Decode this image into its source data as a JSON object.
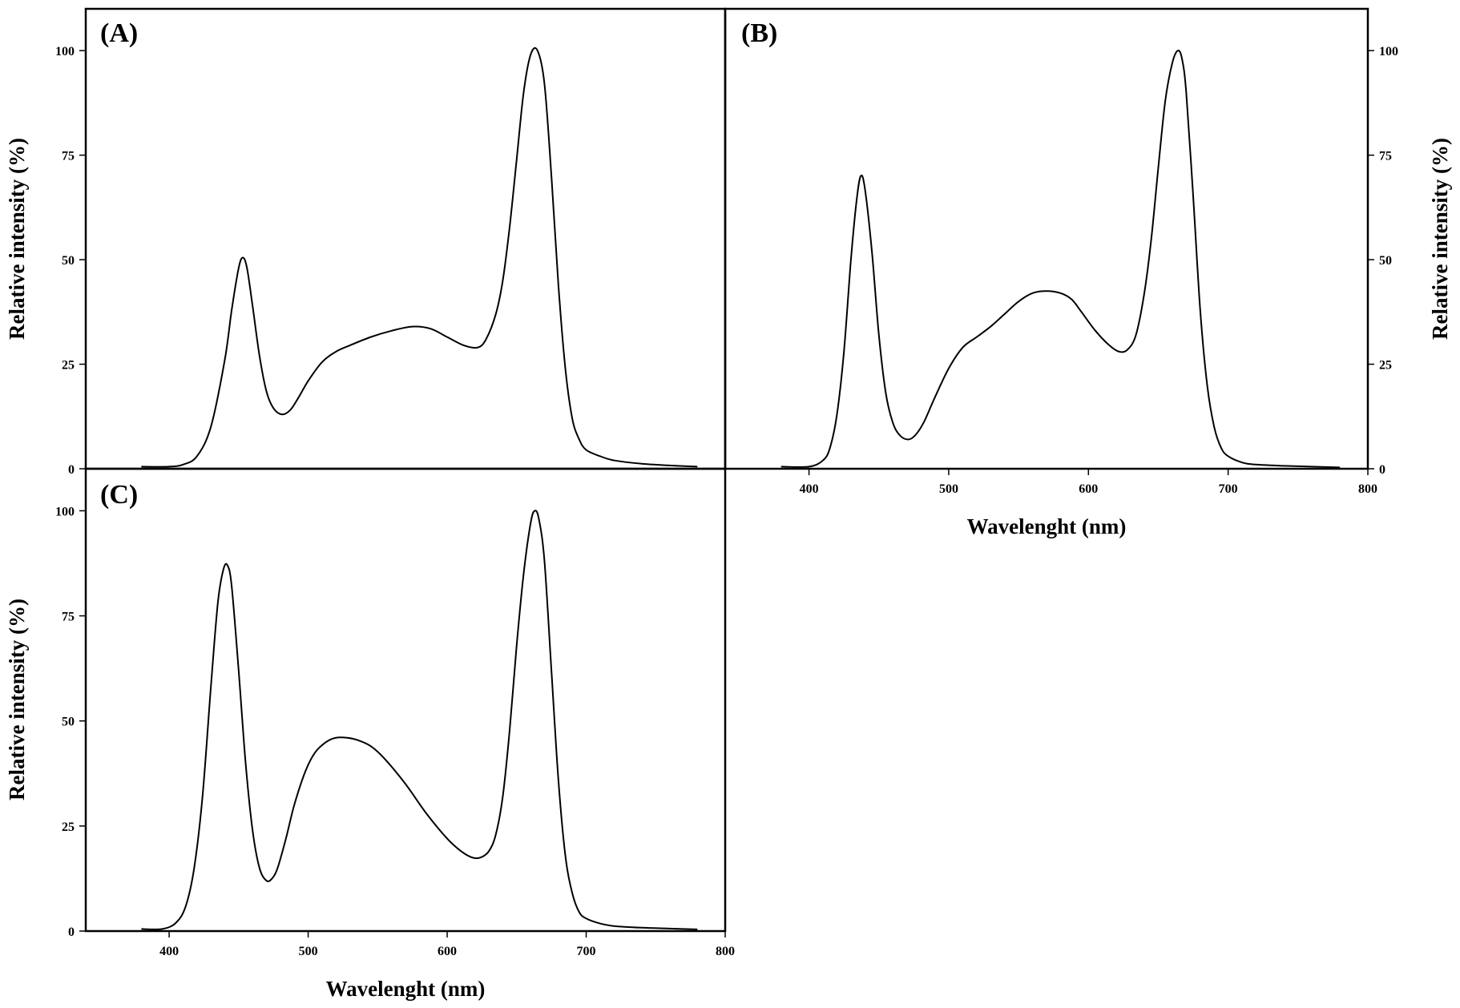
{
  "chart_data": [
    {
      "type": "line",
      "panel_label": "(A)",
      "xlabel": "",
      "ylabel": "Relative intensity (%)",
      "xlim": [
        340,
        800
      ],
      "ylim": [
        0,
        110
      ],
      "xticks": [],
      "yticks": [
        0,
        25,
        50,
        75,
        100
      ],
      "y_axis_side": "left",
      "grid": false,
      "series": [
        {
          "x": [
            380,
            400,
            410,
            420,
            430,
            440,
            445,
            450,
            453,
            456,
            460,
            465,
            470,
            475,
            481,
            487,
            493,
            500,
            510,
            520,
            530,
            545,
            560,
            575,
            588,
            600,
            612,
            622,
            628,
            635,
            640,
            645,
            650,
            655,
            660,
            665,
            670,
            675,
            680,
            685,
            690,
            695,
            700,
            710,
            720,
            740,
            760,
            780
          ],
          "y": [
            0.5,
            0.5,
            1,
            3,
            10,
            26,
            38,
            48,
            50.5,
            48,
            39,
            27,
            18.5,
            14.5,
            13,
            14,
            17,
            21,
            25.5,
            28,
            29.5,
            31.5,
            33,
            34,
            33.5,
            31.5,
            29.5,
            29,
            31,
            37,
            45,
            58,
            74,
            90,
            99,
            100,
            92,
            70,
            44,
            24,
            12,
            7,
            4.5,
            3,
            2,
            1.2,
            0.8,
            0.5
          ]
        }
      ]
    },
    {
      "type": "line",
      "panel_label": "(B)",
      "xlabel": "Wavelenght (nm)",
      "ylabel": "Relative intensity (%)",
      "xlim": [
        340,
        800
      ],
      "ylim": [
        0,
        110
      ],
      "xticks": [
        400,
        500,
        600,
        700,
        800
      ],
      "yticks": [
        0,
        25,
        50,
        75,
        100
      ],
      "y_axis_side": "right",
      "grid": false,
      "series": [
        {
          "x": [
            380,
            400,
            410,
            415,
            420,
            425,
            430,
            434,
            437,
            440,
            445,
            450,
            455,
            460,
            465,
            471,
            476,
            482,
            490,
            500,
            510,
            520,
            530,
            540,
            550,
            560,
            570,
            580,
            588,
            595,
            605,
            615,
            622,
            628,
            634,
            640,
            645,
            650,
            655,
            660,
            664,
            667,
            670,
            675,
            680,
            685,
            690,
            695,
            700,
            710,
            720,
            740,
            760,
            780
          ],
          "y": [
            0.5,
            0.5,
            2,
            5,
            13,
            28,
            50,
            64,
            70,
            67,
            52,
            32,
            18,
            11,
            8,
            7,
            8,
            11,
            17,
            24,
            29,
            31.5,
            34,
            37,
            40,
            42,
            42.5,
            42,
            40.5,
            37.5,
            33,
            29.5,
            28,
            28.5,
            32,
            42,
            55,
            72,
            88,
            97,
            100,
            98,
            90,
            65,
            38,
            20,
            10,
            5,
            3,
            1.5,
            1,
            0.7,
            0.5,
            0.3
          ]
        }
      ]
    },
    {
      "type": "line",
      "panel_label": "(C)",
      "xlabel": "Wavelenght (nm)",
      "ylabel": "Relative intensity (%)",
      "xlim": [
        340,
        800
      ],
      "ylim": [
        0,
        110
      ],
      "xticks": [
        400,
        500,
        600,
        700,
        800
      ],
      "yticks": [
        0,
        25,
        50,
        75,
        100
      ],
      "y_axis_side": "left",
      "grid": false,
      "series": [
        {
          "x": [
            380,
            395,
            405,
            412,
            418,
            424,
            430,
            435,
            439,
            442,
            445,
            450,
            455,
            460,
            465,
            470,
            474,
            478,
            484,
            490,
            498,
            505,
            513,
            520,
            528,
            535,
            545,
            555,
            570,
            585,
            600,
            610,
            618,
            624,
            630,
            635,
            640,
            645,
            650,
            655,
            660,
            663,
            666,
            670,
            675,
            680,
            685,
            690,
            695,
            700,
            710,
            720,
            740,
            760,
            780
          ],
          "y": [
            0.5,
            0.5,
            2,
            6,
            15,
            32,
            58,
            78,
            86,
            87,
            82,
            62,
            40,
            24,
            15,
            12,
            12.5,
            15,
            22,
            30,
            38,
            42.5,
            45,
            46,
            46,
            45.5,
            44,
            41,
            35,
            28,
            22,
            19,
            17.5,
            17.5,
            19,
            23,
            32,
            48,
            68,
            85,
            97,
            100,
            98,
            88,
            62,
            36,
            18,
            9,
            4.5,
            3,
            1.8,
            1.2,
            0.8,
            0.6,
            0.4
          ]
        }
      ]
    }
  ]
}
